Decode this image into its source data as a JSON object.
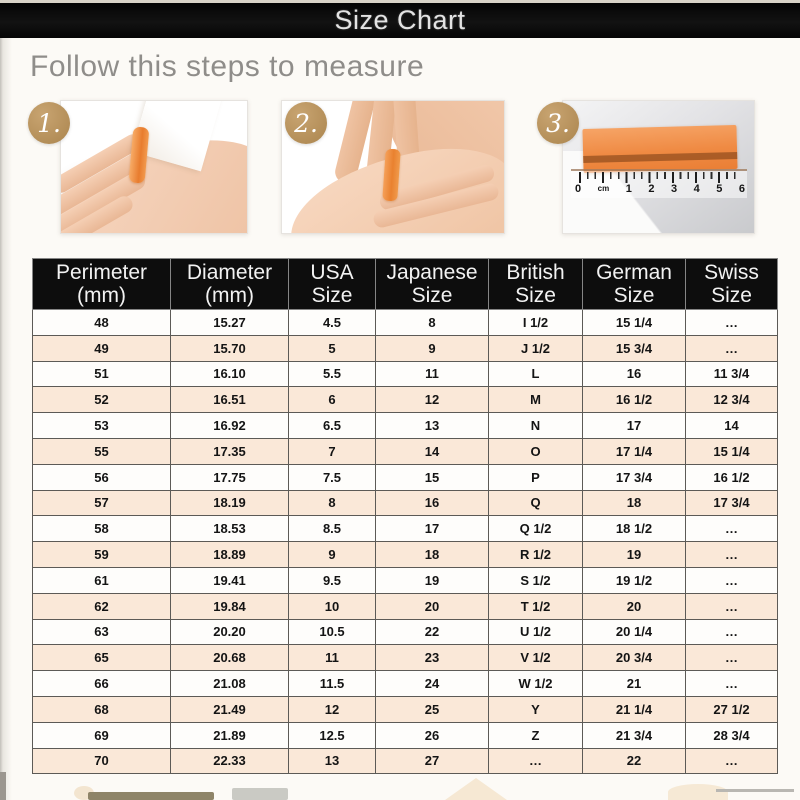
{
  "titlebar": {
    "title": "Size Chart"
  },
  "intro": {
    "heading": "Follow this steps to measure"
  },
  "steps": {
    "step1_number": "1.",
    "step2_number": "2.",
    "step3_number": "3.",
    "ruler_labels": [
      "0",
      "cm",
      "1",
      "2",
      "3",
      "4",
      "5",
      "6"
    ]
  },
  "chart_data": {
    "type": "table",
    "title": "Size Chart",
    "columns": [
      "Perimeter (mm)",
      "Diameter (mm)",
      "USA Size",
      "Japanese Size",
      "British Size",
      "German Size",
      "Swiss Size"
    ],
    "header_lines": [
      [
        "Perimeter",
        "(mm)"
      ],
      [
        "Diameter",
        "(mm)"
      ],
      [
        "USA",
        "Size"
      ],
      [
        "Japanese",
        "Size"
      ],
      [
        "British",
        "Size"
      ],
      [
        "German",
        "Size"
      ],
      [
        "Swiss",
        "Size"
      ]
    ],
    "rows": [
      [
        "48",
        "15.27",
        "4.5",
        "8",
        "I 1/2",
        "15 1/4",
        "…"
      ],
      [
        "49",
        "15.70",
        "5",
        "9",
        "J 1/2",
        "15 3/4",
        "…"
      ],
      [
        "51",
        "16.10",
        "5.5",
        "11",
        "L",
        "16",
        "11 3/4"
      ],
      [
        "52",
        "16.51",
        "6",
        "12",
        "M",
        "16 1/2",
        "12 3/4"
      ],
      [
        "53",
        "16.92",
        "6.5",
        "13",
        "N",
        "17",
        "14"
      ],
      [
        "55",
        "17.35",
        "7",
        "14",
        "O",
        "17 1/4",
        "15 1/4"
      ],
      [
        "56",
        "17.75",
        "7.5",
        "15",
        "P",
        "17 3/4",
        "16 1/2"
      ],
      [
        "57",
        "18.19",
        "8",
        "16",
        "Q",
        "18",
        "17 3/4"
      ],
      [
        "58",
        "18.53",
        "8.5",
        "17",
        "Q 1/2",
        "18 1/2",
        "…"
      ],
      [
        "59",
        "18.89",
        "9",
        "18",
        "R 1/2",
        "19",
        "…"
      ],
      [
        "61",
        "19.41",
        "9.5",
        "19",
        "S 1/2",
        "19 1/2",
        "…"
      ],
      [
        "62",
        "19.84",
        "10",
        "20",
        "T 1/2",
        "20",
        "…"
      ],
      [
        "63",
        "20.20",
        "10.5",
        "22",
        "U 1/2",
        "20 1/4",
        "…"
      ],
      [
        "65",
        "20.68",
        "11",
        "23",
        "V 1/2",
        "20 3/4",
        "…"
      ],
      [
        "66",
        "21.08",
        "11.5",
        "24",
        "W 1/2",
        "21",
        "…"
      ],
      [
        "68",
        "21.49",
        "12",
        "25",
        "Y",
        "21 1/4",
        "27 1/2"
      ],
      [
        "69",
        "21.89",
        "12.5",
        "26",
        "Z",
        "21 3/4",
        "28 3/4"
      ],
      [
        "70",
        "22.33",
        "13",
        "27",
        "…",
        "22",
        "…"
      ]
    ]
  },
  "colors": {
    "titlebar_bg": "#0a0a0a",
    "table_header_bg": "#0d0d0d",
    "row_bg": "#fefdfb",
    "row_alt_bg": "#fae8d8",
    "badge_gold": "#b08b55",
    "strip_orange": "#ee8a45",
    "heading_gray": "#8f8d8a",
    "page_bg": "#fcfaf6"
  }
}
